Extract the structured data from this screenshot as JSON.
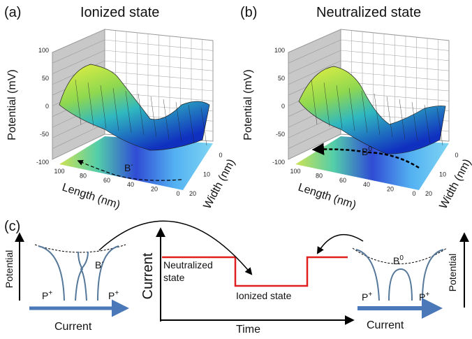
{
  "panels": [
    {
      "label": "(a)",
      "title": "Ionized state",
      "z_axis_label": "Potential (mV)",
      "z_ticks": [
        100,
        50,
        0,
        -50,
        -100
      ],
      "length_label": "Length (nm)",
      "length_ticks": [
        100,
        80,
        60,
        40,
        20,
        0
      ],
      "width_label": "Width (nm)",
      "width_ticks": [
        0,
        10,
        20
      ],
      "site_label": "B",
      "site_charge": "-"
    },
    {
      "label": "(b)",
      "title": "Neutralized state",
      "z_axis_label": "Potential (mV)",
      "z_ticks": [
        100,
        50,
        0,
        -50,
        -100
      ],
      "length_label": "Length (nm)",
      "length_ticks": [
        100,
        80,
        60,
        40,
        20,
        0
      ],
      "width_label": "Width (nm)",
      "width_ticks": [
        0,
        10,
        20
      ],
      "site_label": "B",
      "site_charge": "0"
    }
  ],
  "schematic": {
    "label": "(c)",
    "left": {
      "y_label": "Potential",
      "x_label": "Current",
      "site_label": "B",
      "site_charge": "-",
      "dopant": "P",
      "dopant_charge": "+"
    },
    "plot": {
      "y_label": "Current",
      "x_label": "Time",
      "neutral_label_lines": [
        "Neutralized",
        "state"
      ],
      "ionized_label": "Ionized state"
    },
    "right": {
      "y_label": "Potential",
      "x_label": "Current",
      "site_label": "B",
      "site_charge": "0",
      "dopant": "P",
      "dopant_charge": "+"
    }
  }
}
